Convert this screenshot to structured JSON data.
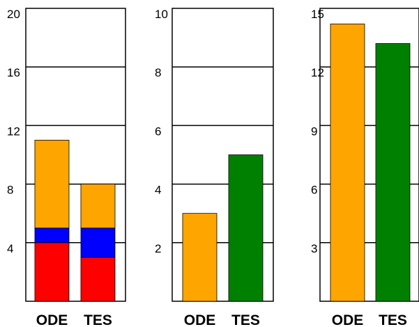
{
  "chart_data": [
    {
      "type": "bar",
      "stacked": true,
      "categories": [
        "ODE",
        "TES"
      ],
      "series": [
        {
          "color": "#ff0000",
          "values": [
            4.0,
            3.0
          ]
        },
        {
          "color": "#0000ff",
          "values": [
            1.0,
            2.0
          ]
        },
        {
          "color": "#ffa500",
          "values": [
            6.0,
            3.0
          ]
        }
      ],
      "ylim": [
        0,
        20
      ],
      "yticks": [
        4,
        8,
        12,
        16,
        20
      ],
      "grid": true
    },
    {
      "type": "bar",
      "categories": [
        "ODE",
        "TES"
      ],
      "series": [
        {
          "colors": [
            "#ffa500",
            "#008000"
          ],
          "values": [
            3.0,
            5.0
          ]
        }
      ],
      "ylim": [
        0,
        10
      ],
      "yticks": [
        2,
        4,
        6,
        8,
        10
      ],
      "grid": true
    },
    {
      "type": "bar",
      "categories": [
        "ODE",
        "TES"
      ],
      "series": [
        {
          "colors": [
            "#ffa500",
            "#008000"
          ],
          "values": [
            14.2,
            13.2
          ]
        }
      ],
      "ylim": [
        0,
        15
      ],
      "yticks": [
        3,
        6,
        9,
        12,
        15
      ],
      "grid": true
    }
  ]
}
